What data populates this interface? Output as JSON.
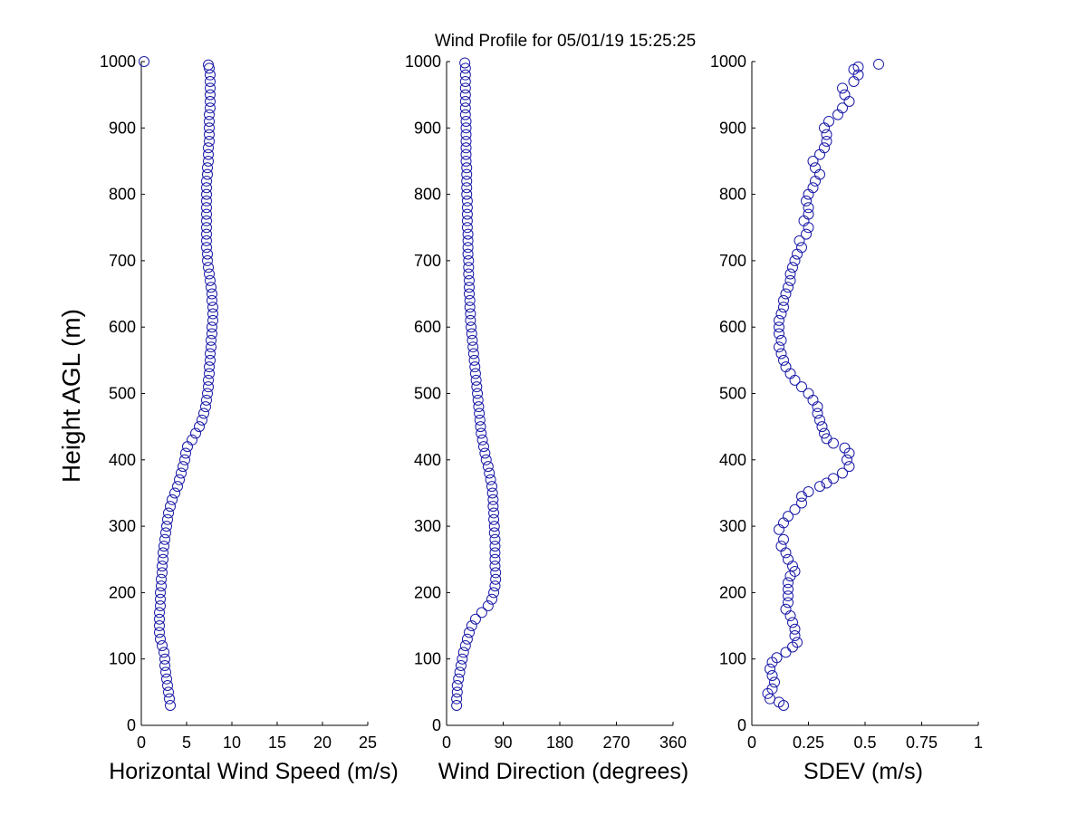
{
  "title": "Wind Profile for  05/01/19 15:25:25",
  "ylabel": "Height AGL (m)",
  "marker_color": "#1a1aa8",
  "chart_data": [
    {
      "type": "scatter",
      "xlabel": "Horizontal Wind Speed (m/s)",
      "xlim": [
        0,
        25
      ],
      "ylim": [
        0,
        1000
      ],
      "xticks": [
        "0",
        "5",
        "10",
        "15",
        "20",
        "25"
      ],
      "yticks": [
        "0",
        "100",
        "200",
        "300",
        "400",
        "500",
        "600",
        "700",
        "800",
        "900",
        "1000"
      ],
      "points": [
        {
          "x": 0.3,
          "y": 1000
        },
        [
          3.2,
          30
        ],
        [
          3.1,
          40
        ],
        [
          3.0,
          50
        ],
        [
          2.9,
          60
        ],
        [
          2.8,
          70
        ],
        [
          2.7,
          80
        ],
        [
          2.6,
          90
        ],
        [
          2.6,
          100
        ],
        [
          2.5,
          110
        ],
        [
          2.3,
          120
        ],
        [
          2.1,
          130
        ],
        [
          2.0,
          140
        ],
        [
          2.0,
          150
        ],
        [
          2.0,
          160
        ],
        [
          2.0,
          170
        ],
        [
          2.1,
          180
        ],
        [
          2.1,
          190
        ],
        [
          2.1,
          200
        ],
        [
          2.2,
          210
        ],
        [
          2.2,
          220
        ],
        [
          2.3,
          230
        ],
        [
          2.3,
          240
        ],
        [
          2.4,
          250
        ],
        [
          2.4,
          260
        ],
        [
          2.5,
          270
        ],
        [
          2.6,
          280
        ],
        [
          2.7,
          290
        ],
        [
          2.8,
          300
        ],
        [
          2.9,
          310
        ],
        [
          3.0,
          320
        ],
        [
          3.2,
          330
        ],
        [
          3.4,
          340
        ],
        [
          3.7,
          350
        ],
        [
          4.0,
          360
        ],
        [
          4.2,
          370
        ],
        [
          4.4,
          380
        ],
        [
          4.6,
          390
        ],
        [
          4.8,
          400
        ],
        [
          4.9,
          410
        ],
        [
          5.1,
          420
        ],
        [
          5.6,
          430
        ],
        [
          6.0,
          440
        ],
        [
          6.4,
          450
        ],
        [
          6.7,
          460
        ],
        [
          6.9,
          470
        ],
        [
          7.1,
          480
        ],
        [
          7.2,
          490
        ],
        [
          7.3,
          500
        ],
        [
          7.4,
          510
        ],
        [
          7.4,
          520
        ],
        [
          7.5,
          530
        ],
        [
          7.5,
          540
        ],
        [
          7.6,
          550
        ],
        [
          7.6,
          560
        ],
        [
          7.7,
          570
        ],
        [
          7.7,
          580
        ],
        [
          7.8,
          590
        ],
        [
          7.8,
          600
        ],
        [
          7.9,
          610
        ],
        [
          7.9,
          620
        ],
        [
          7.9,
          630
        ],
        [
          7.8,
          640
        ],
        [
          7.8,
          650
        ],
        [
          7.7,
          660
        ],
        [
          7.6,
          670
        ],
        [
          7.5,
          680
        ],
        [
          7.4,
          690
        ],
        [
          7.3,
          700
        ],
        [
          7.3,
          710
        ],
        [
          7.2,
          720
        ],
        [
          7.2,
          730
        ],
        [
          7.2,
          740
        ],
        [
          7.2,
          750
        ],
        [
          7.2,
          760
        ],
        [
          7.2,
          770
        ],
        [
          7.2,
          780
        ],
        [
          7.2,
          790
        ],
        [
          7.2,
          800
        ],
        [
          7.2,
          810
        ],
        [
          7.2,
          820
        ],
        [
          7.3,
          830
        ],
        [
          7.3,
          840
        ],
        [
          7.4,
          850
        ],
        [
          7.4,
          860
        ],
        [
          7.4,
          870
        ],
        [
          7.5,
          880
        ],
        [
          7.5,
          890
        ],
        [
          7.5,
          900
        ],
        [
          7.5,
          910
        ],
        [
          7.5,
          920
        ],
        [
          7.6,
          930
        ],
        [
          7.6,
          940
        ],
        [
          7.6,
          950
        ],
        [
          7.6,
          960
        ],
        [
          7.6,
          970
        ],
        [
          7.6,
          980
        ],
        [
          7.5,
          990
        ],
        [
          7.4,
          995
        ]
      ]
    },
    {
      "type": "scatter",
      "xlabel": "Wind Direction (degrees)",
      "xlim": [
        0,
        360
      ],
      "ylim": [
        0,
        1000
      ],
      "xticks": [
        "0",
        "90",
        "180",
        "270",
        "360"
      ],
      "yticks": [
        "0",
        "100",
        "200",
        "300",
        "400",
        "500",
        "600",
        "700",
        "800",
        "900",
        "1000"
      ],
      "points": [
        [
          16,
          30
        ],
        [
          16,
          40
        ],
        [
          17,
          50
        ],
        [
          17,
          60
        ],
        [
          19,
          70
        ],
        [
          21,
          80
        ],
        [
          23,
          90
        ],
        [
          25,
          100
        ],
        [
          27,
          110
        ],
        [
          30,
          120
        ],
        [
          33,
          130
        ],
        [
          36,
          140
        ],
        [
          40,
          150
        ],
        [
          46,
          160
        ],
        [
          56,
          170
        ],
        [
          66,
          180
        ],
        [
          72,
          190
        ],
        [
          75,
          200
        ],
        [
          77,
          210
        ],
        [
          78,
          220
        ],
        [
          78,
          230
        ],
        [
          77,
          240
        ],
        [
          77,
          250
        ],
        [
          77,
          260
        ],
        [
          77,
          270
        ],
        [
          77,
          280
        ],
        [
          76,
          290
        ],
        [
          76,
          300
        ],
        [
          75,
          310
        ],
        [
          75,
          320
        ],
        [
          74,
          330
        ],
        [
          74,
          340
        ],
        [
          73,
          350
        ],
        [
          72,
          360
        ],
        [
          70,
          370
        ],
        [
          68,
          380
        ],
        [
          66,
          390
        ],
        [
          63,
          400
        ],
        [
          61,
          410
        ],
        [
          59,
          420
        ],
        [
          57,
          430
        ],
        [
          55,
          440
        ],
        [
          54,
          450
        ],
        [
          53,
          460
        ],
        [
          52,
          470
        ],
        [
          51,
          480
        ],
        [
          50,
          490
        ],
        [
          49,
          500
        ],
        [
          48,
          510
        ],
        [
          47,
          520
        ],
        [
          46,
          530
        ],
        [
          45,
          540
        ],
        [
          44,
          550
        ],
        [
          43,
          560
        ],
        [
          42,
          570
        ],
        [
          41,
          580
        ],
        [
          40,
          590
        ],
        [
          39,
          600
        ],
        [
          38,
          610
        ],
        [
          38,
          620
        ],
        [
          37,
          630
        ],
        [
          37,
          640
        ],
        [
          36,
          650
        ],
        [
          36,
          660
        ],
        [
          36,
          670
        ],
        [
          35,
          680
        ],
        [
          35,
          690
        ],
        [
          35,
          700
        ],
        [
          34,
          710
        ],
        [
          34,
          720
        ],
        [
          34,
          730
        ],
        [
          34,
          740
        ],
        [
          33,
          750
        ],
        [
          33,
          760
        ],
        [
          33,
          770
        ],
        [
          33,
          780
        ],
        [
          33,
          790
        ],
        [
          32,
          800
        ],
        [
          32,
          810
        ],
        [
          32,
          820
        ],
        [
          32,
          830
        ],
        [
          32,
          840
        ],
        [
          31,
          850
        ],
        [
          31,
          860
        ],
        [
          31,
          870
        ],
        [
          31,
          880
        ],
        [
          31,
          890
        ],
        [
          31,
          900
        ],
        [
          31,
          910
        ],
        [
          30,
          920
        ],
        [
          30,
          930
        ],
        [
          30,
          940
        ],
        [
          30,
          950
        ],
        [
          30,
          960
        ],
        [
          30,
          970
        ],
        [
          30,
          980
        ],
        [
          30,
          990
        ],
        [
          29,
          998
        ]
      ]
    },
    {
      "type": "scatter",
      "xlabel": "SDEV  (m/s)",
      "xlim": [
        0,
        1
      ],
      "ylim": [
        0,
        1000
      ],
      "xticks": [
        "0",
        "0.25",
        "0.5",
        "0.75",
        "1"
      ],
      "yticks": [
        "0",
        "100",
        "200",
        "300",
        "400",
        "500",
        "600",
        "700",
        "800",
        "900",
        "1000"
      ],
      "points": [
        [
          0.14,
          30
        ],
        [
          0.12,
          35
        ],
        [
          0.08,
          40
        ],
        [
          0.07,
          48
        ],
        [
          0.09,
          55
        ],
        [
          0.1,
          65
        ],
        [
          0.09,
          75
        ],
        [
          0.08,
          85
        ],
        [
          0.09,
          95
        ],
        [
          0.11,
          102
        ],
        [
          0.15,
          110
        ],
        [
          0.18,
          118
        ],
        [
          0.2,
          125
        ],
        [
          0.19,
          135
        ],
        [
          0.19,
          145
        ],
        [
          0.18,
          155
        ],
        [
          0.17,
          165
        ],
        [
          0.15,
          175
        ],
        [
          0.16,
          185
        ],
        [
          0.16,
          195
        ],
        [
          0.16,
          205
        ],
        [
          0.16,
          215
        ],
        [
          0.17,
          225
        ],
        [
          0.19,
          232
        ],
        [
          0.18,
          240
        ],
        [
          0.16,
          250
        ],
        [
          0.15,
          260
        ],
        [
          0.13,
          270
        ],
        [
          0.14,
          280
        ],
        [
          0.12,
          295
        ],
        [
          0.14,
          305
        ],
        [
          0.16,
          315
        ],
        [
          0.19,
          325
        ],
        [
          0.22,
          335
        ],
        [
          0.22,
          345
        ],
        [
          0.25,
          352
        ],
        [
          0.3,
          360
        ],
        [
          0.33,
          365
        ],
        [
          0.36,
          372
        ],
        [
          0.4,
          380
        ],
        [
          0.43,
          390
        ],
        [
          0.42,
          400
        ],
        [
          0.43,
          410
        ],
        [
          0.41,
          418
        ],
        [
          0.36,
          425
        ],
        [
          0.33,
          432
        ],
        [
          0.32,
          440
        ],
        [
          0.31,
          450
        ],
        [
          0.3,
          460
        ],
        [
          0.29,
          470
        ],
        [
          0.29,
          480
        ],
        [
          0.27,
          490
        ],
        [
          0.25,
          500
        ],
        [
          0.22,
          510
        ],
        [
          0.19,
          520
        ],
        [
          0.17,
          530
        ],
        [
          0.15,
          540
        ],
        [
          0.14,
          550
        ],
        [
          0.13,
          560
        ],
        [
          0.12,
          570
        ],
        [
          0.13,
          580
        ],
        [
          0.12,
          590
        ],
        [
          0.12,
          600
        ],
        [
          0.12,
          610
        ],
        [
          0.13,
          620
        ],
        [
          0.14,
          630
        ],
        [
          0.14,
          640
        ],
        [
          0.15,
          650
        ],
        [
          0.16,
          660
        ],
        [
          0.17,
          670
        ],
        [
          0.17,
          680
        ],
        [
          0.18,
          690
        ],
        [
          0.19,
          700
        ],
        [
          0.2,
          710
        ],
        [
          0.22,
          720
        ],
        [
          0.21,
          730
        ],
        [
          0.24,
          740
        ],
        [
          0.25,
          750
        ],
        [
          0.23,
          760
        ],
        [
          0.25,
          770
        ],
        [
          0.25,
          780
        ],
        [
          0.24,
          790
        ],
        [
          0.25,
          800
        ],
        [
          0.27,
          810
        ],
        [
          0.28,
          820
        ],
        [
          0.3,
          830
        ],
        [
          0.28,
          840
        ],
        [
          0.27,
          850
        ],
        [
          0.3,
          860
        ],
        [
          0.32,
          870
        ],
        [
          0.33,
          880
        ],
        [
          0.33,
          890
        ],
        [
          0.32,
          900
        ],
        [
          0.34,
          910
        ],
        [
          0.38,
          920
        ],
        [
          0.4,
          930
        ],
        [
          0.43,
          940
        ],
        [
          0.41,
          950
        ],
        [
          0.4,
          960
        ],
        [
          0.45,
          970
        ],
        [
          0.47,
          980
        ],
        [
          0.45,
          988
        ],
        [
          0.47,
          992
        ],
        [
          0.56,
          996
        ]
      ]
    }
  ]
}
